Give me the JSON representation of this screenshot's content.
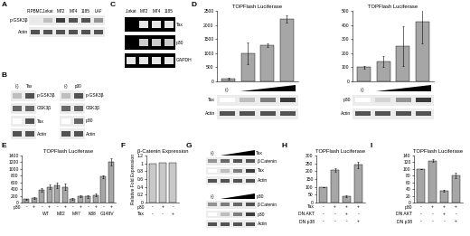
{
  "panel_labels": [
    "A",
    "B",
    "C",
    "D",
    "E",
    "F",
    "G",
    "H",
    "I"
  ],
  "blots": [
    {
      "lanes": [
        "R.PBMC",
        "Jurkat",
        "MT2",
        "MT4",
        "1185",
        "LAF"
      ],
      "rows": [
        {
          "label": "p-GSK3β",
          "bands": [
            0.1,
            0.3,
            0.9,
            0.8,
            0.8,
            0.5
          ]
        },
        {
          "label": "Actin",
          "bands": [
            0.8,
            0.8,
            0.8,
            0.8,
            0.8,
            0.8
          ]
        }
      ]
    },
    {
      "lanes": [
        "(-)",
        "Tax"
      ],
      "rows": [
        {
          "label": "p-GSK3β",
          "bands": [
            0.3,
            0.8
          ]
        },
        {
          "label": "GSK3β",
          "bands": [
            0.7,
            0.7
          ]
        },
        {
          "label": "Tax",
          "bands": [
            0.0,
            0.8
          ]
        },
        {
          "label": "Actin",
          "bands": [
            0.8,
            0.8
          ]
        }
      ]
    },
    {
      "lanes": [
        "(-)",
        "p30"
      ],
      "rows": [
        {
          "label": "p-GSK3β",
          "bands": [
            0.3,
            0.8
          ]
        },
        {
          "label": "GSK3β",
          "bands": [
            0.7,
            0.7
          ]
        },
        {
          "label": "p30",
          "bands": [
            0.0,
            0.7
          ]
        },
        {
          "label": "Actin",
          "bands": [
            0.8,
            0.8
          ]
        }
      ]
    },
    {
      "lanes": [
        "Jurkat",
        "MT2",
        "MT4",
        "1185"
      ],
      "rows": [
        {
          "label": "Tax",
          "bands": [
            0.0,
            0.9,
            0.9,
            0.9
          ]
        },
        {
          "label": "p30",
          "bands": [
            0.0,
            0.8,
            0.8,
            0.8
          ]
        },
        {
          "label": "GAPDH",
          "bands": [
            0.9,
            0.9,
            0.9,
            0.9
          ]
        }
      ]
    },
    {
      "lanes": [
        "(-)",
        null,
        null,
        null
      ],
      "rows": [
        {
          "label": "Tax",
          "bands": [
            0.0,
            0.3,
            0.6,
            0.9
          ]
        },
        {
          "label": "Actin",
          "bands": [
            0.8,
            0.8,
            0.8,
            0.8
          ]
        }
      ]
    },
    {
      "lanes": [
        "(-)",
        null,
        null,
        null
      ],
      "rows": [
        {
          "label": "p30",
          "bands": [
            0.0,
            0.2,
            0.5,
            0.9
          ]
        },
        {
          "label": "Actin",
          "bands": [
            0.8,
            0.8,
            0.8,
            0.8
          ]
        }
      ]
    },
    {
      "lanes": [
        "(-)",
        null,
        null,
        null
      ],
      "dose_label": "Tax",
      "rows": [
        {
          "label": "β-Catenin",
          "bands": [
            0.5,
            0.7,
            0.8,
            0.8
          ]
        },
        {
          "label": "Tax",
          "bands": [
            0.0,
            0.3,
            0.6,
            0.9
          ]
        },
        {
          "label": "Actin",
          "bands": [
            0.8,
            0.8,
            0.8,
            0.8
          ]
        }
      ]
    },
    {
      "lanes": [
        "(-)",
        null,
        null,
        null
      ],
      "dose_label": "p30",
      "rows": [
        {
          "label": "β-Catenin",
          "bands": [
            0.5,
            0.6,
            0.7,
            0.8
          ]
        },
        {
          "label": "p30",
          "bands": [
            0.0,
            0.3,
            0.6,
            0.9
          ]
        },
        {
          "label": "Actin",
          "bands": [
            0.8,
            0.8,
            0.8,
            0.8
          ]
        }
      ]
    }
  ],
  "chart_data": [
    {
      "type": "bar",
      "title": "TOPFlash Luciferase",
      "categories": [
        null,
        null,
        null,
        null
      ],
      "values": [
        100,
        1000,
        1280,
        2200
      ],
      "errors": [
        30,
        380,
        60,
        130
      ],
      "color": "#a6a6a6",
      "ylim": [
        0,
        2500
      ],
      "yticks": [
        0,
        500,
        1000,
        1500,
        2000,
        2500
      ]
    },
    {
      "type": "bar",
      "title": "TOPFlash Luciferase",
      "categories": [
        null,
        null,
        null,
        null
      ],
      "values": [
        100,
        140,
        250,
        420
      ],
      "errors": [
        10,
        40,
        140,
        150
      ],
      "color": "#a6a6a6",
      "ylim": [
        0,
        500
      ],
      "yticks": [
        0,
        100,
        200,
        300,
        400,
        500
      ]
    },
    {
      "type": "bar",
      "title": "TOPFlash Luciferase",
      "categories": [
        null,
        null,
        null,
        null,
        null,
        null,
        null,
        null,
        null,
        null,
        null,
        null
      ],
      "values": [
        100,
        140,
        380,
        470,
        500,
        470,
        110,
        190,
        180,
        220,
        780,
        1220
      ],
      "errors": [
        10,
        20,
        50,
        60,
        80,
        90,
        30,
        30,
        40,
        40,
        40,
        110
      ],
      "color": "#a6a6a6",
      "ylim": [
        0,
        1400
      ],
      "yticks": [
        0,
        200,
        400,
        600,
        800,
        1000,
        1200,
        1400
      ],
      "conditions": [
        {
          "label": "p30",
          "signs": [
            "-",
            "+",
            "-",
            "+",
            "-",
            "+",
            "-",
            "+",
            "-",
            "+",
            "-",
            "+"
          ]
        }
      ],
      "groups": [
        null,
        "WT",
        "M22",
        "M47",
        "K88",
        "G148V"
      ]
    },
    {
      "type": "bar",
      "title": "β-Catenin Expression",
      "y_label": "Relative Fold Expression",
      "categories": [
        null,
        null,
        null
      ],
      "values": [
        1.0,
        1.02,
        1.02
      ],
      "color": "#c8c8c8",
      "ylim": [
        0,
        1.2
      ],
      "yticks": [
        0,
        0.2,
        0.4,
        0.6,
        0.8,
        1,
        1.2
      ],
      "conditions": [
        {
          "label": "p30",
          "signs": [
            "-",
            "+",
            "-"
          ]
        },
        {
          "label": "Tax",
          "signs": [
            "-",
            "-",
            "+"
          ]
        }
      ]
    },
    {
      "type": "bar",
      "title": "TOPFlash Luciferase",
      "categories": [
        null,
        null,
        null,
        null
      ],
      "values": [
        100,
        210,
        40,
        240
      ],
      "errors": [
        0,
        12,
        5,
        18
      ],
      "color": "#a6a6a6",
      "ylim": [
        0,
        300
      ],
      "yticks": [
        0,
        50,
        100,
        150,
        200,
        250,
        300
      ],
      "conditions": [
        {
          "label": "Tax",
          "signs": [
            "-",
            "+",
            "+",
            "+"
          ]
        },
        {
          "label": "DN AKT",
          "signs": [
            "-",
            "-",
            "+",
            "-"
          ]
        },
        {
          "label": "DN p38",
          "signs": [
            "-",
            "-",
            "-",
            "+"
          ]
        }
      ]
    },
    {
      "type": "bar",
      "title": "TOPFlash Luciferase",
      "categories": [
        null,
        null,
        null,
        null
      ],
      "values": [
        100,
        125,
        35,
        80
      ],
      "errors": [
        0,
        4,
        2,
        8
      ],
      "color": "#a6a6a6",
      "ylim": [
        0,
        140
      ],
      "yticks": [
        0,
        20,
        40,
        60,
        80,
        100,
        120,
        140
      ],
      "conditions": [
        {
          "label": "p30",
          "signs": [
            "-",
            "+",
            "+",
            "+"
          ]
        },
        {
          "label": "DN AKT",
          "signs": [
            "-",
            "-",
            "+",
            "-"
          ]
        },
        {
          "label": "DN p38",
          "signs": [
            "-",
            "-",
            "-",
            "+"
          ]
        }
      ]
    }
  ]
}
